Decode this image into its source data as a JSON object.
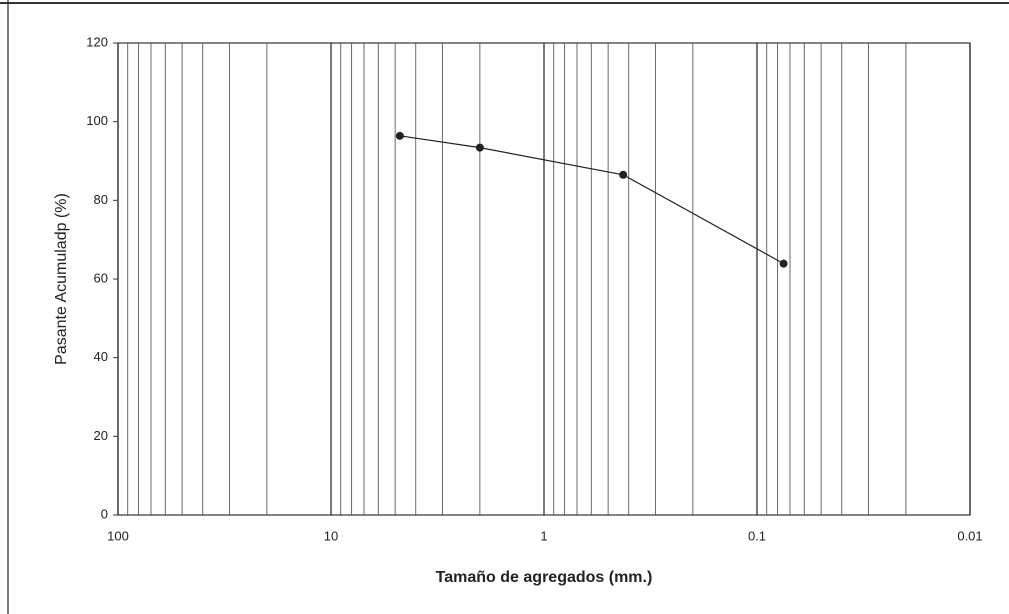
{
  "chart_data": {
    "type": "line",
    "x_label": "Tamaño de agregados (mm.)",
    "y_label": "Pasante Acumuladp (%)",
    "x": [
      4.75,
      2,
      0.425,
      0.075
    ],
    "series": [
      {
        "color": "#222222",
        "values": [
          96.4,
          93.4,
          86.5,
          63.9
        ]
      }
    ],
    "xlim": [
      100,
      0.01
    ],
    "xticks": [
      100,
      10,
      1,
      0.1,
      0.01
    ],
    "xlog": true,
    "x_reversed": true,
    "ylim": [
      0,
      120
    ],
    "yticks": [
      0,
      20,
      40,
      60,
      80,
      100,
      120
    ],
    "minor_grid": true
  }
}
